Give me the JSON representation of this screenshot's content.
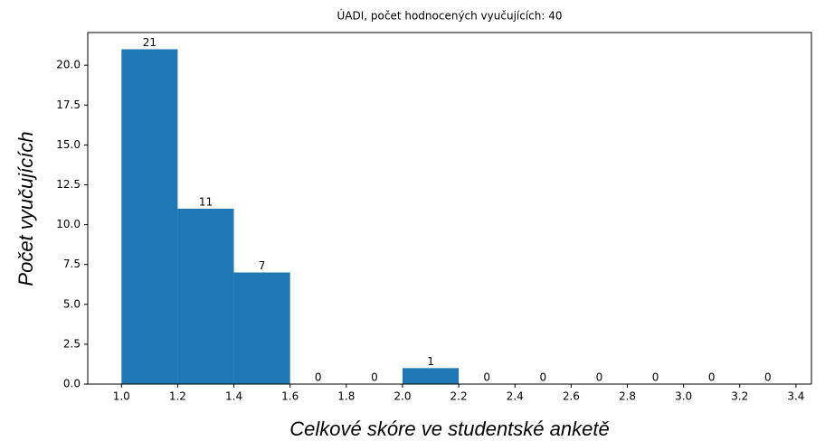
{
  "chart_data": {
    "type": "histogram",
    "title": "ÚADI, počet hodnocených vyučujících: 40",
    "xlabel": "Celkové skóre ve studentské anketě",
    "ylabel": "Počet vyučujících",
    "bins": [
      1.0,
      1.2,
      1.4,
      1.6,
      1.8,
      2.0,
      2.2,
      2.4,
      2.6,
      2.8,
      3.0,
      3.2,
      3.4
    ],
    "counts": [
      21,
      11,
      7,
      0,
      0,
      1,
      0,
      0,
      0,
      0,
      0,
      0
    ],
    "color": "#1f77b4",
    "xlim": [
      0.88,
      3.455
    ],
    "ylim": [
      0,
      22.05
    ],
    "xticks": [
      {
        "value": 1.0,
        "label": "1.0"
      },
      1.2,
      1.4,
      1.6,
      1.8,
      {
        "value": 2.0,
        "label": "2.0"
      },
      2.2,
      2.4,
      2.6,
      2.8,
      {
        "value": 3.0,
        "label": "3.0"
      },
      3.2,
      3.4
    ],
    "yticks": [
      {
        "value": 0,
        "label": "0.0"
      },
      {
        "value": 2.5,
        "label": "2.5"
      },
      {
        "value": 5,
        "label": "5.0"
      },
      {
        "value": 7.5,
        "label": "7.5"
      },
      {
        "value": 10,
        "label": "10.0"
      },
      {
        "value": 12.5,
        "label": "12.5"
      },
      {
        "value": 15,
        "label": "15.0"
      },
      {
        "value": 17.5,
        "label": "17.5"
      },
      {
        "value": 20,
        "label": "20.0"
      }
    ]
  }
}
